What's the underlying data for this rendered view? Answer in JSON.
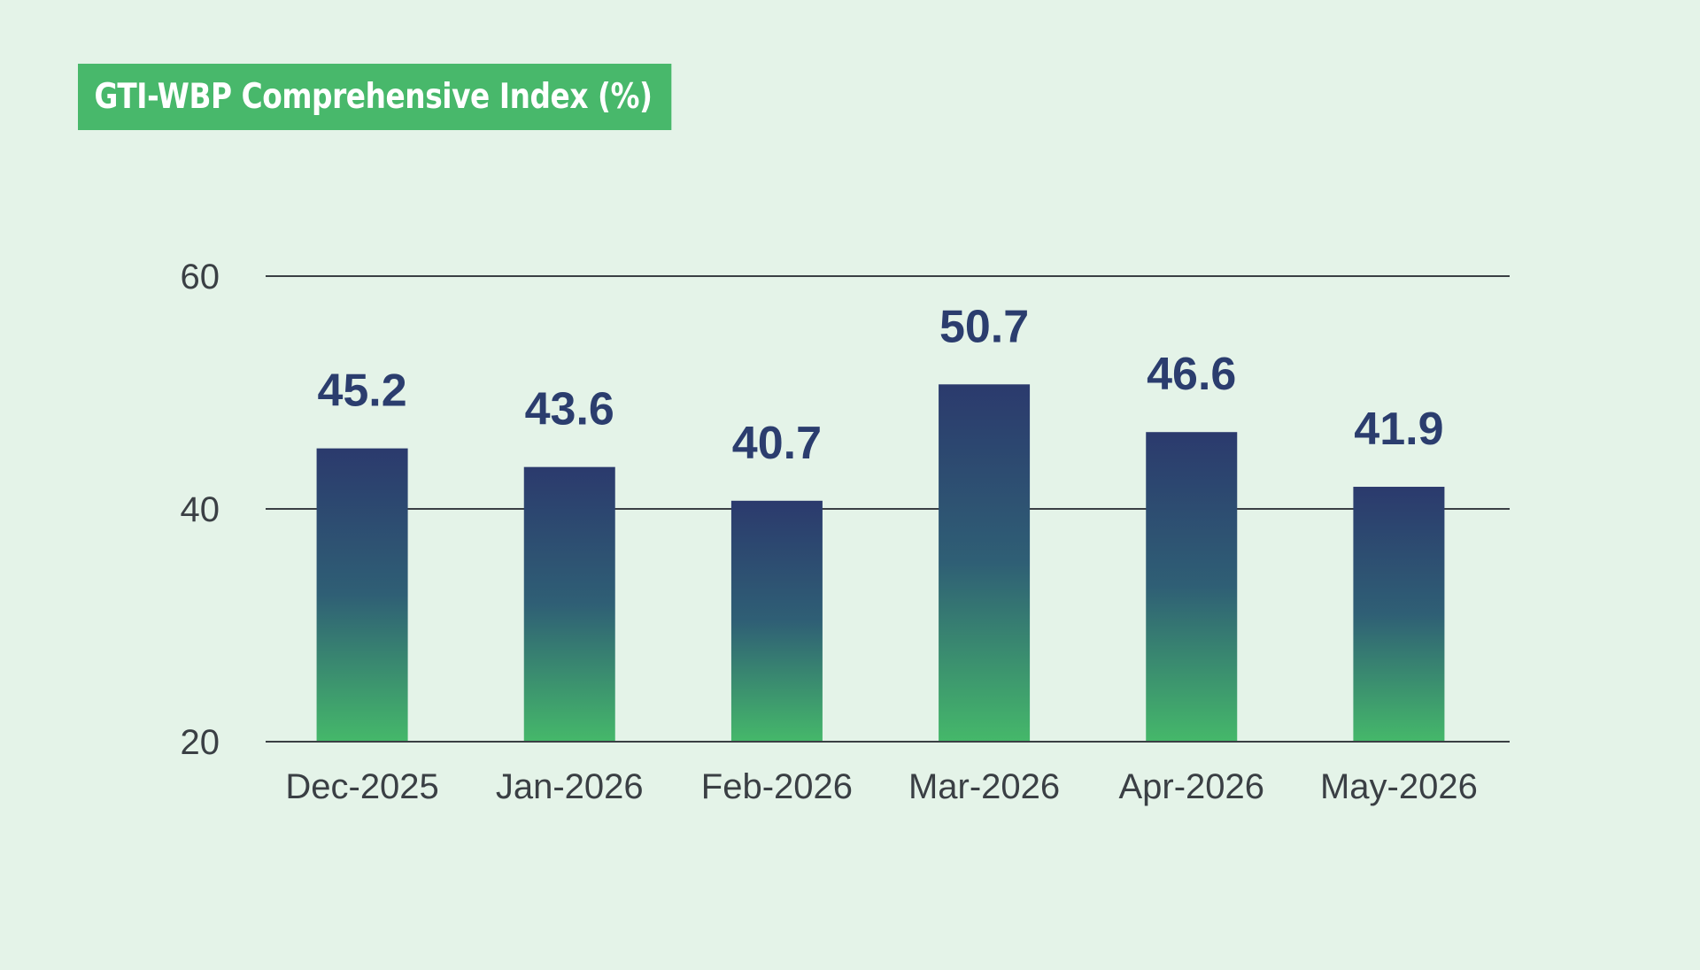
{
  "chart_data": {
    "type": "bar",
    "title": "GTI-WBP Comprehensive Index (%)",
    "xlabel": "",
    "ylabel": "",
    "categories": [
      "Dec-2025",
      "Jan-2026",
      "Feb-2026",
      "Mar-2026",
      "Apr-2026",
      "May-2026"
    ],
    "series": [
      {
        "values": [
          45.2,
          43.6,
          40.7,
          50.7,
          46.6,
          41.9
        ]
      }
    ],
    "value_labels": [
      "45.2",
      "43.6",
      "40.7",
      "50.7",
      "46.6",
      "41.9"
    ],
    "y_ticks": [
      20,
      40,
      60
    ],
    "y_tick_labels": [
      "20",
      "40",
      "60"
    ],
    "ylim": [
      20,
      60
    ],
    "grid": true,
    "legend": "none",
    "colors": {
      "background": "#e4f3e8",
      "title_badge": "#48b86b",
      "bar_top": "#2b3a6d",
      "bar_bottom": "#45b86a",
      "value_label": "#2b3d6e",
      "gridline": "#3a3f44"
    }
  }
}
